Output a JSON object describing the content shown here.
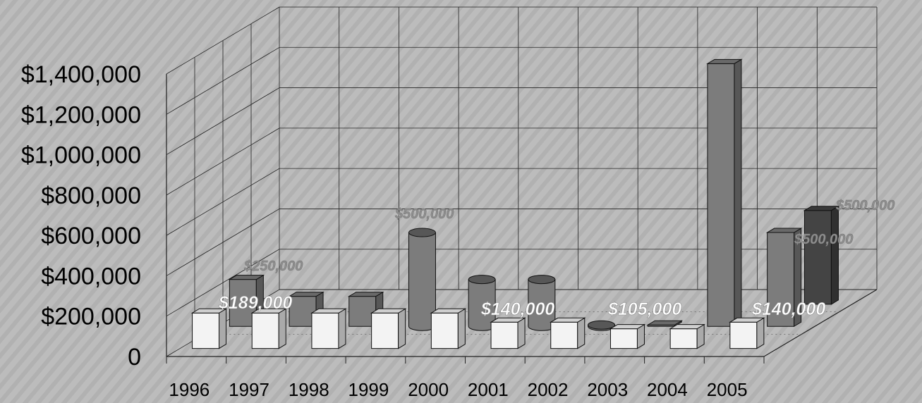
{
  "chart_data": {
    "type": "bar",
    "categories": [
      "1996",
      "1997",
      "1998",
      "1999",
      "2000",
      "2001",
      "2002",
      "2003",
      "2004",
      "2005"
    ],
    "y_ticks": [
      "0",
      "$200,000",
      "$400,000",
      "$600,000",
      "$800,000",
      "$1,000,000",
      "$1,200,000",
      "$1,400,000"
    ],
    "ylim": [
      0,
      1400000
    ],
    "grid": true,
    "series": [
      {
        "values": [
          189000,
          189000,
          189000,
          189000,
          189000,
          140000,
          140000,
          105000,
          105000,
          140000
        ]
      },
      {
        "values": [
          250000,
          160000,
          160000,
          500000,
          250000,
          250000,
          0,
          0,
          1400000,
          500000
        ]
      },
      {
        "values": [
          null,
          null,
          null,
          null,
          null,
          null,
          null,
          null,
          null,
          500000
        ]
      }
    ],
    "data_labels": [
      {
        "text": "$250,000",
        "layer": "back"
      },
      {
        "text": "$189,000",
        "layer": "front"
      },
      {
        "text": "$500,000",
        "layer": "back"
      },
      {
        "text": "$140,000",
        "layer": "front"
      },
      {
        "text": "$105,000",
        "layer": "front"
      },
      {
        "text": "$140,000",
        "layer": "front"
      },
      {
        "text": "$500,000",
        "layer": "back"
      },
      {
        "text": "$500,000",
        "layer": "back"
      }
    ],
    "colors": {
      "background": "#b9b9b9",
      "front_bar": "#f3f3f3",
      "middle_bar": "#7c7c7c",
      "back_bar": "#444444",
      "grid": "#222222"
    }
  }
}
